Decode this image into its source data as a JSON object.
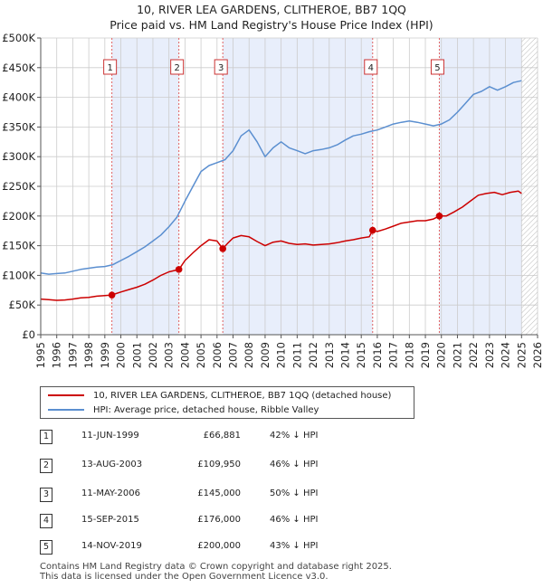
{
  "chart_data": {
    "type": "line",
    "title": "10, RIVER LEA GARDENS, CLITHEROE, BB7 1QQ",
    "subtitle": "Price paid vs. HM Land Registry's House Price Index (HPI)",
    "y_ticks": [
      "£0",
      "£50K",
      "£100K",
      "£150K",
      "£200K",
      "£250K",
      "£300K",
      "£350K",
      "£400K",
      "£450K",
      "£500K"
    ],
    "x_ticks": [
      "1995",
      "1996",
      "1997",
      "1998",
      "1999",
      "2000",
      "2001",
      "2002",
      "2003",
      "2004",
      "2005",
      "2006",
      "2007",
      "2008",
      "2009",
      "2010",
      "2011",
      "2012",
      "2013",
      "2014",
      "2015",
      "2016",
      "2017",
      "2018",
      "2019",
      "2020",
      "2021",
      "2022",
      "2023",
      "2024",
      "2025",
      "2026"
    ],
    "xlim": [
      1995,
      2026
    ],
    "ylim": [
      0,
      500000
    ],
    "colors": {
      "property": "#cc0000",
      "hpi": "#5b8fd0",
      "band": "#e8eefb",
      "hatch": "#bbbbbb"
    },
    "series": [
      {
        "name": "10, RIVER LEA GARDENS, CLITHEROE, BB7 1QQ (detached house)",
        "color": "#cc0000",
        "points": [
          [
            1995.0,
            60000
          ],
          [
            1995.5,
            59000
          ],
          [
            1996.0,
            58000
          ],
          [
            1996.5,
            58500
          ],
          [
            1997.0,
            60000
          ],
          [
            1997.5,
            62000
          ],
          [
            1998.0,
            63000
          ],
          [
            1998.5,
            65000
          ],
          [
            1999.0,
            66000
          ],
          [
            1999.44,
            66881
          ],
          [
            2000.0,
            72000
          ],
          [
            2000.5,
            76000
          ],
          [
            2001.0,
            80000
          ],
          [
            2001.5,
            85000
          ],
          [
            2002.0,
            92000
          ],
          [
            2002.5,
            100000
          ],
          [
            2003.0,
            106000
          ],
          [
            2003.62,
            109950
          ],
          [
            2004.0,
            125000
          ],
          [
            2004.5,
            138000
          ],
          [
            2005.0,
            150000
          ],
          [
            2005.5,
            160000
          ],
          [
            2006.0,
            158000
          ],
          [
            2006.36,
            145000
          ],
          [
            2006.7,
            155000
          ],
          [
            2007.0,
            163000
          ],
          [
            2007.5,
            167000
          ],
          [
            2008.0,
            165000
          ],
          [
            2008.5,
            157000
          ],
          [
            2009.0,
            150000
          ],
          [
            2009.5,
            156000
          ],
          [
            2010.0,
            158000
          ],
          [
            2010.5,
            154000
          ],
          [
            2011.0,
            152000
          ],
          [
            2011.5,
            153000
          ],
          [
            2012.0,
            151000
          ],
          [
            2012.5,
            152000
          ],
          [
            2013.0,
            153000
          ],
          [
            2013.5,
            155000
          ],
          [
            2014.0,
            158000
          ],
          [
            2014.5,
            160000
          ],
          [
            2015.0,
            163000
          ],
          [
            2015.5,
            165000
          ],
          [
            2015.71,
            176000
          ],
          [
            2016.0,
            174000
          ],
          [
            2016.5,
            178000
          ],
          [
            2017.0,
            183000
          ],
          [
            2017.5,
            188000
          ],
          [
            2018.0,
            190000
          ],
          [
            2018.5,
            192000
          ],
          [
            2019.0,
            192000
          ],
          [
            2019.5,
            195000
          ],
          [
            2019.87,
            200000
          ],
          [
            2020.3,
            200000
          ],
          [
            2020.8,
            207000
          ],
          [
            2021.3,
            215000
          ],
          [
            2021.8,
            225000
          ],
          [
            2022.3,
            235000
          ],
          [
            2022.8,
            238000
          ],
          [
            2023.3,
            240000
          ],
          [
            2023.8,
            236000
          ],
          [
            2024.3,
            240000
          ],
          [
            2024.8,
            242000
          ],
          [
            2025.0,
            238000
          ]
        ]
      },
      {
        "name": "HPI: Average price, detached house, Ribble Valley",
        "color": "#5b8fd0",
        "points": [
          [
            1995.0,
            104000
          ],
          [
            1995.5,
            102000
          ],
          [
            1996.0,
            103000
          ],
          [
            1996.5,
            104000
          ],
          [
            1997.0,
            107000
          ],
          [
            1997.5,
            110000
          ],
          [
            1998.0,
            112000
          ],
          [
            1998.5,
            114000
          ],
          [
            1999.0,
            115000
          ],
          [
            1999.5,
            118000
          ],
          [
            2000.0,
            125000
          ],
          [
            2000.5,
            132000
          ],
          [
            2001.0,
            140000
          ],
          [
            2001.5,
            148000
          ],
          [
            2002.0,
            158000
          ],
          [
            2002.5,
            168000
          ],
          [
            2003.0,
            182000
          ],
          [
            2003.5,
            198000
          ],
          [
            2004.0,
            225000
          ],
          [
            2004.5,
            250000
          ],
          [
            2005.0,
            275000
          ],
          [
            2005.5,
            285000
          ],
          [
            2006.0,
            290000
          ],
          [
            2006.5,
            295000
          ],
          [
            2007.0,
            310000
          ],
          [
            2007.5,
            335000
          ],
          [
            2008.0,
            345000
          ],
          [
            2008.5,
            325000
          ],
          [
            2009.0,
            300000
          ],
          [
            2009.5,
            315000
          ],
          [
            2010.0,
            325000
          ],
          [
            2010.5,
            315000
          ],
          [
            2011.0,
            310000
          ],
          [
            2011.5,
            305000
          ],
          [
            2012.0,
            310000
          ],
          [
            2012.5,
            312000
          ],
          [
            2013.0,
            315000
          ],
          [
            2013.5,
            320000
          ],
          [
            2014.0,
            328000
          ],
          [
            2014.5,
            335000
          ],
          [
            2015.0,
            338000
          ],
          [
            2015.5,
            342000
          ],
          [
            2016.0,
            345000
          ],
          [
            2016.5,
            350000
          ],
          [
            2017.0,
            355000
          ],
          [
            2017.5,
            358000
          ],
          [
            2018.0,
            360000
          ],
          [
            2018.5,
            358000
          ],
          [
            2019.0,
            355000
          ],
          [
            2019.5,
            352000
          ],
          [
            2020.0,
            355000
          ],
          [
            2020.5,
            362000
          ],
          [
            2021.0,
            375000
          ],
          [
            2021.5,
            390000
          ],
          [
            2022.0,
            405000
          ],
          [
            2022.5,
            410000
          ],
          [
            2023.0,
            418000
          ],
          [
            2023.5,
            412000
          ],
          [
            2024.0,
            418000
          ],
          [
            2024.5,
            425000
          ],
          [
            2025.0,
            428000
          ]
        ]
      }
    ],
    "bands": [
      [
        1999.44,
        2003.62
      ],
      [
        2006.36,
        2015.71
      ],
      [
        2019.87,
        2025.0
      ]
    ],
    "hatch_from": 2025.0,
    "sales": [
      {
        "num": "1",
        "x": 1999.44,
        "price": 66881
      },
      {
        "num": "2",
        "x": 2003.62,
        "price": 109950
      },
      {
        "num": "3",
        "x": 2006.36,
        "price": 145000
      },
      {
        "num": "4",
        "x": 2015.71,
        "price": 176000
      },
      {
        "num": "5",
        "x": 2019.87,
        "price": 200000
      }
    ],
    "legend": [
      "10, RIVER LEA GARDENS, CLITHEROE, BB7 1QQ (detached house)",
      "HPI: Average price, detached house, Ribble Valley"
    ]
  },
  "sales_table": [
    {
      "num": "1",
      "date": "11-JUN-1999",
      "price": "£66,881",
      "hpi": "42% ↓ HPI"
    },
    {
      "num": "2",
      "date": "13-AUG-2003",
      "price": "£109,950",
      "hpi": "46% ↓ HPI"
    },
    {
      "num": "3",
      "date": "11-MAY-2006",
      "price": "£145,000",
      "hpi": "50% ↓ HPI"
    },
    {
      "num": "4",
      "date": "15-SEP-2015",
      "price": "£176,000",
      "hpi": "46% ↓ HPI"
    },
    {
      "num": "5",
      "date": "14-NOV-2019",
      "price": "£200,000",
      "hpi": "43% ↓ HPI"
    }
  ],
  "footer": {
    "line1": "Contains HM Land Registry data © Crown copyright and database right 2025.",
    "line2": "This data is licensed under the Open Government Licence v3.0."
  }
}
